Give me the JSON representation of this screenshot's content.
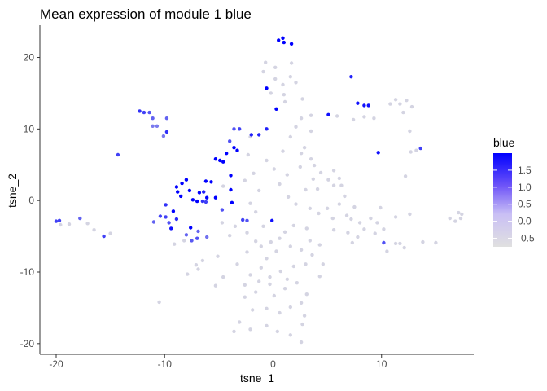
{
  "chart_data": {
    "type": "scatter",
    "title": "Mean expression of module 1 blue",
    "xlabel": "tsne_1",
    "ylabel": "tsne_2",
    "xlim": [
      -21.5,
      18.5
    ],
    "ylim": [
      -21.5,
      24.5
    ],
    "x_ticks": [
      -20,
      -10,
      0,
      10
    ],
    "y_ticks": [
      -20,
      -10,
      0,
      10,
      20
    ],
    "grid": false,
    "legend": {
      "title": "blue",
      "placement": "right",
      "range": [
        -0.75,
        2.0
      ],
      "ticks": [
        1.5,
        1.0,
        0.5,
        0.0,
        -0.5
      ],
      "tick_labels": [
        "1.5",
        "1.0",
        "0.5",
        "0.0",
        "-0.5"
      ],
      "colors": [
        "#e0e0e0",
        "#0000ff"
      ]
    },
    "points": [
      [
        0.5,
        22.4,
        2.0
      ],
      [
        0.9,
        22.7,
        2.0
      ],
      [
        1.0,
        22.1,
        2.0
      ],
      [
        1.7,
        21.9,
        2.0
      ],
      [
        -0.6,
        15.7,
        2.0
      ],
      [
        0.3,
        12.8,
        2.0
      ],
      [
        5.1,
        12.0,
        1.8
      ],
      [
        7.2,
        17.3,
        1.6
      ],
      [
        7.8,
        13.6,
        1.8
      ],
      [
        8.4,
        13.3,
        1.8
      ],
      [
        8.8,
        13.3,
        1.8
      ],
      [
        9.7,
        6.7,
        1.8
      ],
      [
        13.6,
        7.3,
        1.2
      ],
      [
        10.2,
        -5.9,
        1.0
      ],
      [
        -2.0,
        9.2,
        1.6
      ],
      [
        -1.3,
        9.2,
        1.6
      ],
      [
        -0.6,
        10.0,
        1.6
      ],
      [
        -3.1,
        10.0,
        1.2
      ],
      [
        -3.6,
        10.0,
        1.0
      ],
      [
        -4.0,
        8.3,
        1.0
      ],
      [
        -3.6,
        7.4,
        2.0
      ],
      [
        -3.3,
        7.0,
        2.0
      ],
      [
        -4.3,
        6.6,
        2.0
      ],
      [
        -5.3,
        5.8,
        2.0
      ],
      [
        -4.9,
        5.6,
        2.0
      ],
      [
        -4.6,
        5.4,
        2.0
      ],
      [
        -3.9,
        3.5,
        2.0
      ],
      [
        -8.9,
        1.9,
        2.0
      ],
      [
        -8.4,
        2.4,
        2.0
      ],
      [
        -8.0,
        2.9,
        2.0
      ],
      [
        -7.7,
        1.4,
        2.0
      ],
      [
        -8.8,
        1.2,
        2.0
      ],
      [
        -8.5,
        0.6,
        2.0
      ],
      [
        -7.4,
        0.1,
        2.0
      ],
      [
        -6.8,
        1.1,
        2.0
      ],
      [
        -6.4,
        1.2,
        1.6
      ],
      [
        -6.1,
        0.4,
        2.0
      ],
      [
        -5.3,
        0.4,
        2.0
      ],
      [
        -7.0,
        -0.1,
        2.0
      ],
      [
        -6.5,
        -0.1,
        1.4
      ],
      [
        -6.2,
        -0.2,
        1.2
      ],
      [
        -4.7,
        -1.3,
        1.0
      ],
      [
        -3.9,
        1.5,
        2.0
      ],
      [
        -3.8,
        -0.3,
        2.0
      ],
      [
        -2.8,
        -2.7,
        1.2
      ],
      [
        -2.4,
        -2.8,
        1.0
      ],
      [
        -0.1,
        -2.8,
        1.8
      ],
      [
        -6.2,
        2.7,
        2.0
      ],
      [
        -5.7,
        2.6,
        2.0
      ],
      [
        -9.9,
        -0.6,
        1.4
      ],
      [
        -9.2,
        -1.5,
        2.0
      ],
      [
        -8.9,
        -2.6,
        1.5
      ],
      [
        -9.9,
        -2.3,
        1.2
      ],
      [
        -10.4,
        -2.2,
        1.2
      ],
      [
        -9.6,
        -3.1,
        1.0
      ],
      [
        -11.0,
        -3.0,
        0.8
      ],
      [
        -9.4,
        -3.9,
        1.8
      ],
      [
        -7.6,
        -3.8,
        2.0
      ],
      [
        -7.0,
        -5.3,
        1.0
      ],
      [
        -7.5,
        -5.6,
        0.9
      ],
      [
        -8.0,
        -4.8,
        0.8
      ],
      [
        -6.1,
        -5.1,
        0.6
      ],
      [
        -6.9,
        -4.3,
        0.8
      ],
      [
        -12.3,
        12.5,
        1.4
      ],
      [
        -11.9,
        12.3,
        1.2
      ],
      [
        -11.4,
        12.3,
        1.0
      ],
      [
        -11.1,
        11.5,
        0.8
      ],
      [
        -10.7,
        10.4,
        0.5
      ],
      [
        -11.1,
        10.4,
        0.5
      ],
      [
        -9.8,
        9.6,
        1.4
      ],
      [
        -9.8,
        11.5,
        0.8
      ],
      [
        -10.1,
        9.0,
        0.5
      ],
      [
        -14.3,
        6.4,
        1.2
      ],
      [
        -20.0,
        -2.9,
        1.2
      ],
      [
        -19.7,
        -2.8,
        1.2
      ],
      [
        -15.6,
        -5.0,
        1.2
      ],
      [
        -17.8,
        -2.5,
        0.8
      ],
      [
        0.2,
        18.6,
        -0.6
      ],
      [
        -0.9,
        18.0,
        -0.6
      ],
      [
        1.7,
        19.2,
        -0.6
      ],
      [
        -0.7,
        19.3,
        -0.6
      ],
      [
        1.6,
        17.3,
        -0.6
      ],
      [
        2.1,
        16.5,
        -0.6
      ],
      [
        0.9,
        16.2,
        -0.6
      ],
      [
        -0.2,
        15.0,
        -0.6
      ],
      [
        1.0,
        14.8,
        -0.6
      ],
      [
        1.1,
        13.8,
        -0.6
      ],
      [
        3.5,
        11.9,
        -0.6
      ],
      [
        5.9,
        11.8,
        -0.6
      ],
      [
        7.4,
        11.3,
        -0.6
      ],
      [
        8.4,
        11.7,
        -0.6
      ],
      [
        9.3,
        11.5,
        -0.6
      ],
      [
        10.8,
        13.5,
        -0.6
      ],
      [
        11.3,
        14.1,
        -0.6
      ],
      [
        11.7,
        13.5,
        -0.6
      ],
      [
        12.3,
        14.0,
        -0.6
      ],
      [
        12.8,
        13.1,
        -0.6
      ],
      [
        12.0,
        12.3,
        -0.6
      ],
      [
        12.6,
        9.7,
        -0.6
      ],
      [
        13.2,
        7.0,
        -0.6
      ],
      [
        12.7,
        6.8,
        -0.6
      ],
      [
        12.2,
        3.4,
        -0.6
      ],
      [
        12.6,
        -1.9,
        -0.6
      ],
      [
        11.3,
        -2.3,
        -0.6
      ],
      [
        10.2,
        -4.0,
        -0.6
      ],
      [
        9.6,
        -3.1,
        -0.6
      ],
      [
        9.0,
        -2.5,
        -0.6
      ],
      [
        9.4,
        -4.6,
        -0.6
      ],
      [
        8.0,
        -3.1,
        -0.6
      ],
      [
        7.8,
        -5.1,
        -0.6
      ],
      [
        7.3,
        -5.9,
        -0.6
      ],
      [
        10.5,
        -7.1,
        -0.6
      ],
      [
        11.3,
        -6.0,
        -0.6
      ],
      [
        12.1,
        -6.6,
        -0.6
      ],
      [
        13.8,
        -5.8,
        -0.6
      ],
      [
        16.3,
        -2.5,
        -0.6
      ],
      [
        16.8,
        -2.9,
        -0.6
      ],
      [
        17.1,
        -1.7,
        -0.6
      ],
      [
        17.3,
        -2.5,
        -0.6
      ],
      [
        17.4,
        -1.9,
        -0.6
      ],
      [
        3.5,
        9.7,
        -0.6
      ],
      [
        2.9,
        7.4,
        -0.6
      ],
      [
        2.6,
        6.6,
        -0.6
      ],
      [
        3.5,
        5.8,
        -0.6
      ],
      [
        3.8,
        4.9,
        -0.6
      ],
      [
        4.4,
        3.9,
        -0.6
      ],
      [
        5.1,
        2.9,
        -0.6
      ],
      [
        5.6,
        2.1,
        -0.6
      ],
      [
        6.1,
        3.1,
        -0.6
      ],
      [
        6.6,
        0.6,
        -0.6
      ],
      [
        6.1,
        -0.5,
        -0.6
      ],
      [
        5.0,
        -1.1,
        -0.6
      ],
      [
        4.2,
        -1.8,
        -0.6
      ],
      [
        3.4,
        -1.1,
        -0.6
      ],
      [
        2.1,
        -0.5,
        -0.6
      ],
      [
        1.4,
        0.5,
        -0.6
      ],
      [
        0.6,
        2.3,
        -0.6
      ],
      [
        0.1,
        4.4,
        -0.6
      ],
      [
        -0.6,
        5.6,
        -0.6
      ],
      [
        0.9,
        6.9,
        -0.6
      ],
      [
        1.6,
        8.9,
        -0.6
      ],
      [
        2.1,
        10.3,
        -0.6
      ],
      [
        2.6,
        11.5,
        -0.6
      ],
      [
        -1.8,
        3.8,
        -0.6
      ],
      [
        -1.3,
        1.4,
        -0.6
      ],
      [
        -2.1,
        -0.4,
        -0.6
      ],
      [
        -1.6,
        -1.6,
        -0.6
      ],
      [
        -2.4,
        -4.5,
        -0.6
      ],
      [
        -1.6,
        -5.7,
        -0.6
      ],
      [
        -1.1,
        -6.4,
        -0.6
      ],
      [
        -0.2,
        -5.8,
        -0.6
      ],
      [
        0.6,
        -5.3,
        -0.6
      ],
      [
        1.1,
        -4.4,
        -0.6
      ],
      [
        1.6,
        -6.4,
        -0.6
      ],
      [
        2.6,
        -6.9,
        -0.6
      ],
      [
        3.4,
        -5.6,
        -0.6
      ],
      [
        3.1,
        -3.9,
        -0.6
      ],
      [
        1.9,
        -3.5,
        -0.6
      ],
      [
        -0.6,
        -8.1,
        -0.6
      ],
      [
        -1.1,
        -9.4,
        -0.6
      ],
      [
        -2.1,
        -10.4,
        -0.6
      ],
      [
        -1.3,
        -11.3,
        -0.6
      ],
      [
        -0.3,
        -10.7,
        -0.6
      ],
      [
        0.7,
        -9.9,
        -0.6
      ],
      [
        1.9,
        -9.2,
        -0.6
      ],
      [
        3.0,
        -8.9,
        -0.6
      ],
      [
        2.2,
        -11.5,
        -0.6
      ],
      [
        1.1,
        -12.3,
        -0.6
      ],
      [
        0.1,
        -13.3,
        -0.6
      ],
      [
        -1.6,
        -12.8,
        -0.6
      ],
      [
        -2.6,
        -13.5,
        -0.6
      ],
      [
        -1.9,
        -15.3,
        -0.6
      ],
      [
        -0.6,
        -15.1,
        -0.6
      ],
      [
        0.6,
        -15.7,
        -0.6
      ],
      [
        1.6,
        -14.9,
        -0.6
      ],
      [
        2.6,
        -14.3,
        -0.6
      ],
      [
        3.1,
        -13.1,
        -0.6
      ],
      [
        -3.1,
        -17.0,
        -0.6
      ],
      [
        -3.6,
        -18.3,
        -0.6
      ],
      [
        -2.1,
        -18.0,
        -0.6
      ],
      [
        -0.6,
        -17.5,
        -0.6
      ],
      [
        0.4,
        -18.3,
        -0.6
      ],
      [
        1.6,
        -18.8,
        -0.6
      ],
      [
        2.6,
        -19.8,
        -0.6
      ],
      [
        2.7,
        -17.3,
        -0.6
      ],
      [
        -0.9,
        -3.6,
        -0.6
      ],
      [
        -3.3,
        -8.9,
        -0.6
      ],
      [
        -4.6,
        -10.7,
        -0.6
      ],
      [
        -5.3,
        -11.9,
        -0.6
      ],
      [
        -6.9,
        -9.6,
        -0.6
      ],
      [
        -7.1,
        -9.0,
        -0.6
      ],
      [
        -6.5,
        -8.4,
        -0.6
      ],
      [
        -5.1,
        -7.8,
        -0.6
      ],
      [
        -4.0,
        -4.9,
        -0.6
      ],
      [
        -3.5,
        -3.6,
        -0.6
      ],
      [
        -4.7,
        -3.1,
        -0.6
      ],
      [
        -10.5,
        -14.2,
        -0.6
      ],
      [
        -15.0,
        -4.6,
        -0.6
      ],
      [
        -16.5,
        -4.1,
        -0.6
      ],
      [
        -17.1,
        -3.2,
        -0.6
      ],
      [
        -18.8,
        -3.3,
        -0.6
      ],
      [
        -19.6,
        -3.4,
        -0.6
      ],
      [
        -4.6,
        2.0,
        -0.6
      ],
      [
        -2.6,
        2.8,
        -0.6
      ],
      [
        -2.3,
        6.4,
        -0.6
      ],
      [
        -2.1,
        8.9,
        -0.6
      ],
      [
        5.6,
        4.2,
        -0.6
      ],
      [
        6.3,
        2.1,
        -0.6
      ],
      [
        4.1,
        1.6,
        -0.6
      ],
      [
        7.2,
        -2.6,
        -0.6
      ],
      [
        5.6,
        -4.1,
        -0.6
      ],
      [
        4.3,
        -6.2,
        -0.6
      ],
      [
        3.6,
        -7.6,
        -0.6
      ],
      [
        7.5,
        -0.9,
        -0.6
      ],
      [
        9.9,
        -1.0,
        -0.6
      ],
      [
        11.7,
        -6.0,
        -0.6
      ],
      [
        15.0,
        -5.9,
        -0.6
      ],
      [
        8.4,
        -4.0,
        -0.6
      ],
      [
        6.8,
        -2.1,
        -0.6
      ],
      [
        -7.9,
        -10.3,
        -0.6
      ],
      [
        -8.2,
        -5.6,
        -0.6
      ],
      [
        -9.1,
        -6.1,
        -0.6
      ],
      [
        -2.6,
        -11.8,
        -0.6
      ],
      [
        -0.3,
        -11.7,
        -0.6
      ],
      [
        1.3,
        -11.0,
        -0.6
      ],
      [
        0.3,
        -7.1,
        -0.6
      ],
      [
        -2.4,
        -7.2,
        -0.6
      ],
      [
        2.9,
        -16.1,
        -0.6
      ],
      [
        4.3,
        -10.6,
        -0.6
      ],
      [
        4.6,
        -8.9,
        -0.6
      ],
      [
        5.5,
        -2.5,
        -0.6
      ],
      [
        6.9,
        -4.5,
        -0.6
      ],
      [
        3.0,
        1.5,
        -0.6
      ],
      [
        1.3,
        3.6,
        -0.6
      ],
      [
        2.5,
        4.7,
        -0.6
      ],
      [
        3.7,
        3.0,
        -0.6
      ],
      [
        2.7,
        14.2,
        -0.6
      ],
      [
        0.2,
        17.0,
        -0.6
      ]
    ]
  }
}
